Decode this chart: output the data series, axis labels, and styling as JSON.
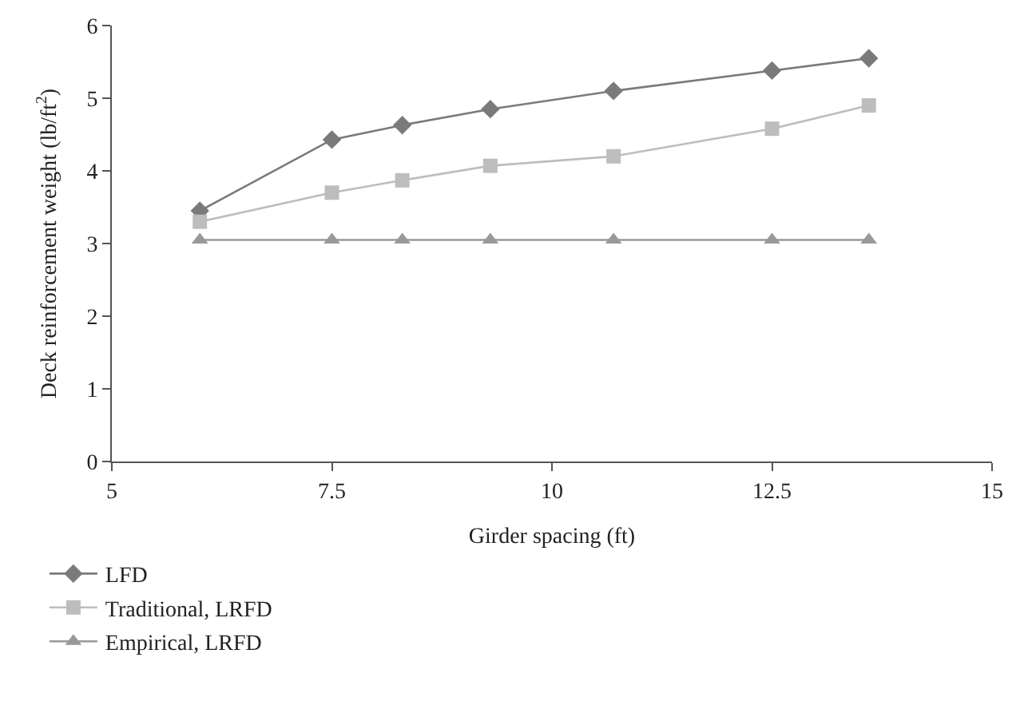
{
  "chart_data": {
    "type": "line",
    "xlabel": "Girder spacing (ft)",
    "ylabel": "Deck reinforcement weight (lb/ft$^{2}$)",
    "x": [
      6,
      7.5,
      8.3,
      9.3,
      10.7,
      12.5,
      13.6
    ],
    "series": [
      {
        "name": "LFD",
        "color": "#7a7a7a",
        "marker": "diamond",
        "values": [
          3.45,
          4.43,
          4.63,
          4.85,
          5.1,
          5.38,
          5.55
        ]
      },
      {
        "name": "Traditional, LRFD",
        "color": "#bdbdbd",
        "marker": "square",
        "values": [
          3.3,
          3.7,
          3.87,
          4.07,
          4.2,
          4.58,
          4.9
        ]
      },
      {
        "name": "Empirical, LRFD",
        "color": "#999999",
        "marker": "triangle",
        "values": [
          3.05,
          3.05,
          3.05,
          3.05,
          3.05,
          3.05,
          3.05
        ]
      }
    ],
    "xlim": [
      5,
      15
    ],
    "xticks": [
      5,
      7.5,
      10,
      12.5,
      15
    ],
    "ylim": [
      0,
      6
    ],
    "yticks": [
      0,
      1,
      2,
      3,
      4,
      5,
      6
    ],
    "grid": false,
    "legend": "bottom left",
    "line_style": "solid"
  }
}
